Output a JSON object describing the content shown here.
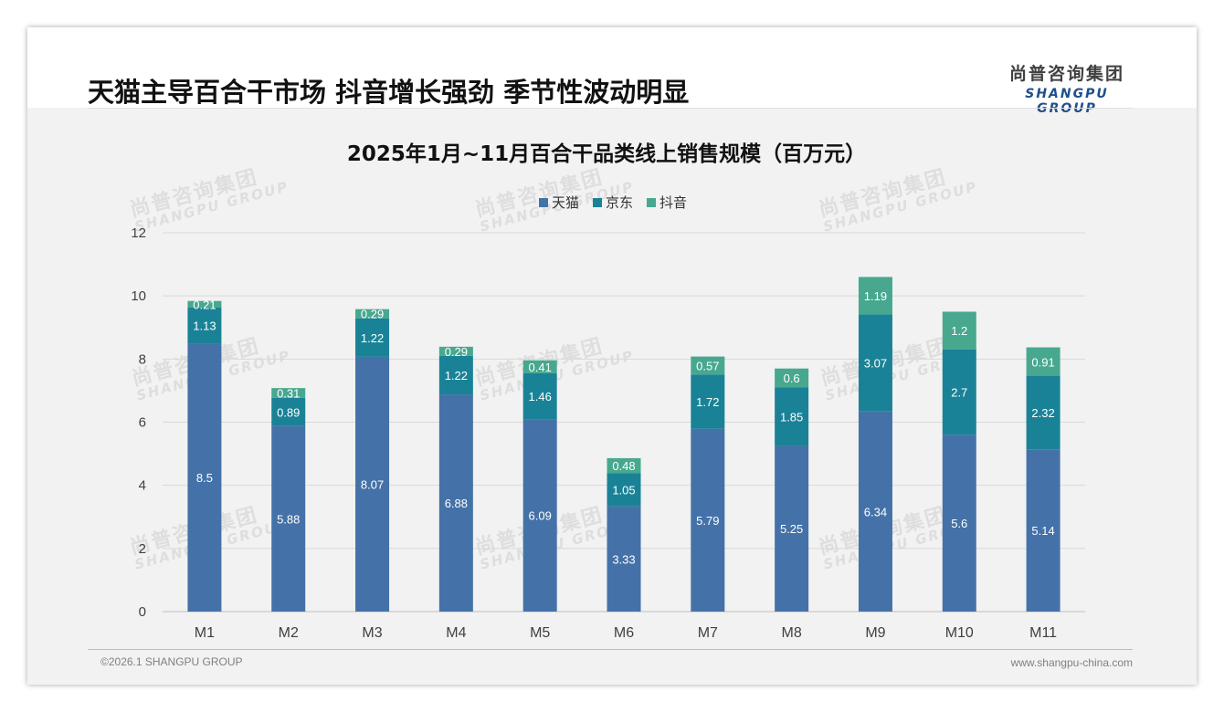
{
  "header": {
    "headline": "天猫主导百合干市场 抖音增长强劲 季节性波动明显",
    "logo_cn": "尚普咨询集团",
    "logo_en": "SHANGPU GROUP"
  },
  "footer": {
    "copyright": "©2026.1 SHANGPU GROUP",
    "website": "www.shangpu-china.com"
  },
  "watermark": {
    "cn": "尚普咨询集团",
    "en": "SHANGPU GROUP"
  },
  "colors": {
    "tmall": "#4472a8",
    "jd": "#1a8296",
    "douyin": "#47a88f",
    "grid": "#d9d9d9",
    "axis": "#bfbfbf"
  },
  "chart_data": {
    "type": "bar",
    "stacked": true,
    "title": "2025年1月~11月百合干品类线上销售规模（百万元）",
    "categories": [
      "M1",
      "M2",
      "M3",
      "M4",
      "M5",
      "M6",
      "M7",
      "M8",
      "M9",
      "M10",
      "M11"
    ],
    "series": [
      {
        "name": "天猫",
        "values": [
          8.5,
          5.88,
          8.07,
          6.88,
          6.09,
          3.33,
          5.79,
          5.25,
          6.34,
          5.6,
          5.14
        ],
        "labels": [
          "8.5",
          "5.88",
          "8.07",
          "6.88",
          "6.09",
          "3.33",
          "5.79",
          "5.25",
          "6.34",
          "5.6",
          "5.14"
        ]
      },
      {
        "name": "京东",
        "values": [
          1.13,
          0.89,
          1.22,
          1.22,
          1.46,
          1.05,
          1.72,
          1.85,
          3.07,
          2.7,
          2.32
        ],
        "labels": [
          "1.13",
          "0.89",
          "1.22",
          "1.22",
          "1.46",
          "1.05",
          "1.72",
          "1.85",
          "3.07",
          "2.7",
          "2.32"
        ]
      },
      {
        "name": "抖音",
        "values": [
          0.21,
          0.31,
          0.29,
          0.29,
          0.41,
          0.48,
          0.57,
          0.6,
          1.19,
          1.2,
          0.91
        ],
        "labels": [
          "0.21",
          "0.31",
          "0.29",
          "0.29",
          "0.41",
          "0.48",
          "0.57",
          "0.6",
          "1.19",
          "1.2",
          "0.91"
        ]
      }
    ],
    "ylim": [
      0,
      12
    ],
    "yticks": [
      "0",
      "2",
      "4",
      "6",
      "8",
      "10",
      "12"
    ],
    "xlabel": "",
    "ylabel": "",
    "grid": true,
    "legend": "top-center"
  }
}
